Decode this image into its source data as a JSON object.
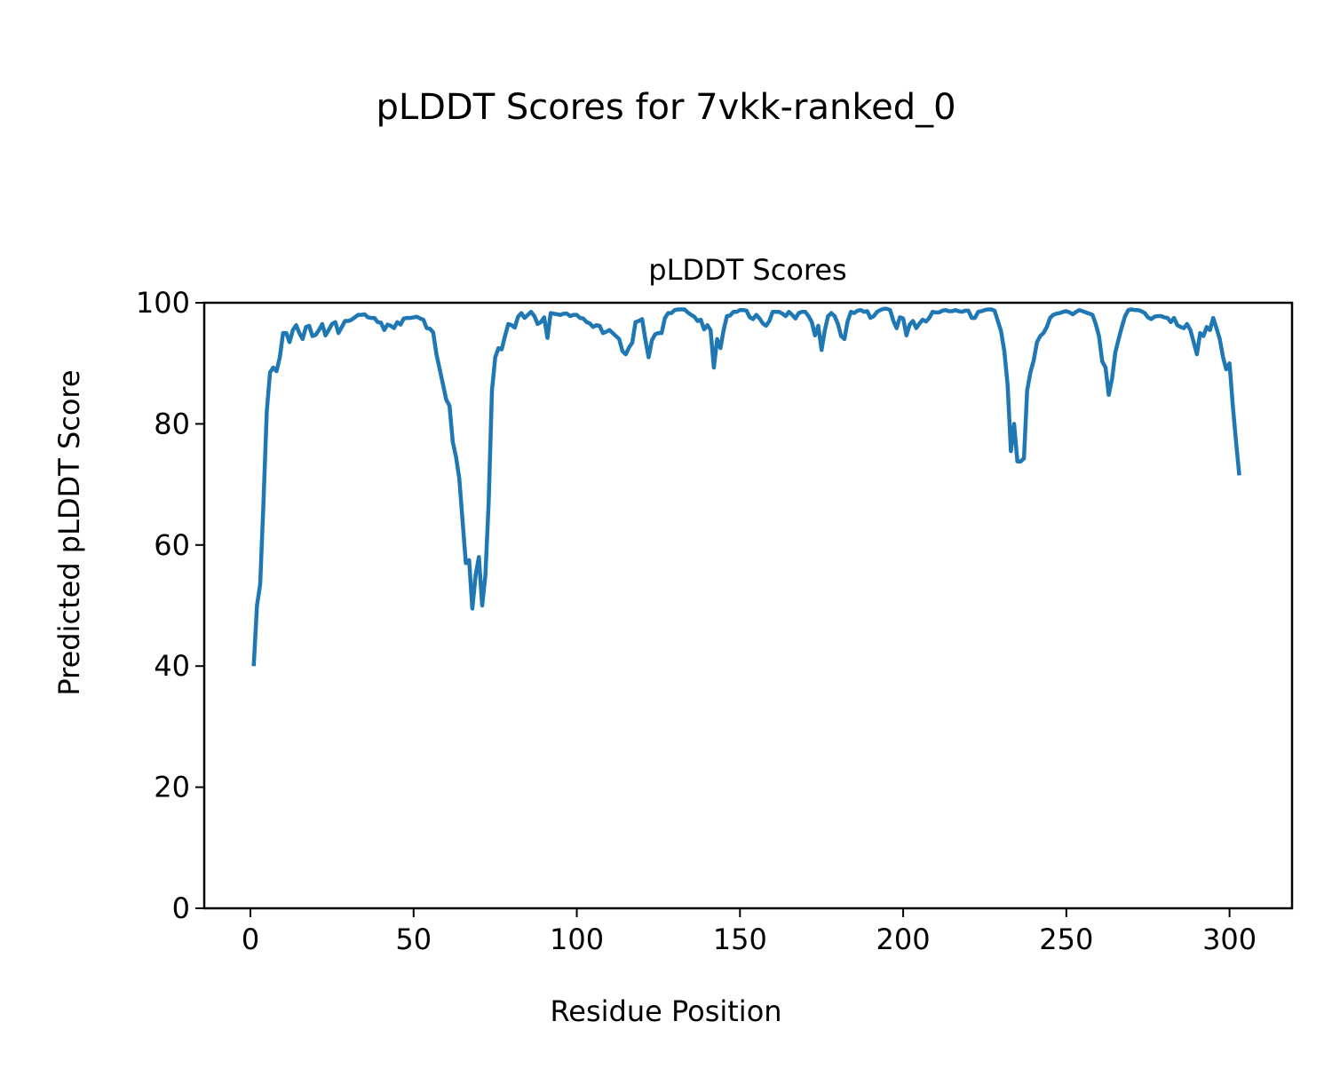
{
  "chart_data": {
    "type": "line",
    "suptitle": "pLDDT Scores for 7vkk-ranked_0",
    "title": "pLDDT Scores",
    "xlabel": "Residue Position",
    "ylabel": "Predicted pLDDT Score",
    "xlim": [
      -14.15,
      319.15
    ],
    "ylim": [
      0,
      100
    ],
    "xticks": [
      0,
      50,
      100,
      150,
      200,
      250,
      300
    ],
    "yticks": [
      0,
      20,
      40,
      60,
      80,
      100
    ],
    "grid": false,
    "line_color": "#1f77b4",
    "x_start": 1,
    "series": [
      {
        "name": "pLDDT",
        "values": [
          40,
          50,
          53.5,
          67,
          82,
          88.5,
          89.3,
          88.7,
          91,
          95,
          95,
          93.5,
          95.5,
          96.3,
          95,
          94,
          96,
          96.2,
          94.5,
          94.7,
          95.5,
          96.5,
          94.6,
          95.5,
          96.5,
          96.8,
          95,
          96,
          97,
          97,
          97.2,
          97.6,
          98,
          98,
          98.1,
          97.6,
          97.5,
          97.5,
          96.8,
          96.7,
          95.5,
          96.4,
          96.2,
          95.8,
          96.8,
          96.4,
          97.4,
          97.5,
          97.5,
          97.6,
          97.7,
          97.4,
          97.2,
          95.8,
          95.7,
          95.1,
          91.5,
          89,
          86.5,
          84,
          83,
          77,
          74.5,
          71,
          64,
          57,
          57.5,
          49.5,
          55,
          58,
          50,
          55,
          67,
          85.5,
          91,
          92.5,
          92.3,
          94.5,
          96.5,
          96.3,
          95.9,
          97.7,
          98.3,
          97.5,
          98,
          98.5,
          97.8,
          96.5,
          96.8,
          97.6,
          94.2,
          98.3,
          98.2,
          98.1,
          98,
          98.2,
          98.2,
          97.8,
          98,
          98,
          97.5,
          97.4,
          96.8,
          96.6,
          96,
          96.3,
          96.2,
          95,
          95.2,
          95.5,
          95,
          94.5,
          94,
          92,
          91.5,
          92.6,
          93.4,
          96.8,
          97,
          97.3,
          94,
          91,
          93.8,
          94.8,
          95,
          95,
          97.5,
          98.3,
          98.3,
          98.8,
          98.9,
          98.9,
          98.9,
          98.4,
          98,
          97.7,
          97,
          97.2,
          95.6,
          96.3,
          95.5,
          89.3,
          94,
          92.5,
          95.5,
          97.8,
          97.9,
          98.5,
          98.5,
          98.8,
          98.8,
          98.7,
          97.6,
          97.3,
          98,
          97.4,
          96.6,
          96.2,
          97,
          98.5,
          98.5,
          98.5,
          98.2,
          97.8,
          98.5,
          98,
          97.4,
          98.3,
          98.5,
          98.5,
          97.8,
          96.8,
          94.6,
          96.2,
          92.2,
          95.5,
          97.8,
          98.3,
          97.8,
          96.5,
          94.5,
          94,
          97,
          98.5,
          98.3,
          98.7,
          98.8,
          98.5,
          98.6,
          97.5,
          97.8,
          98.5,
          98.8,
          99,
          99,
          98.8,
          97,
          95.8,
          97.6,
          97.4,
          94.6,
          96.4,
          97,
          95.8,
          96.6,
          97.2,
          96.9,
          97.5,
          98.5,
          98.4,
          98.4,
          98.7,
          98.8,
          98.6,
          98.6,
          98.8,
          98.6,
          98.5,
          98.7,
          98.7,
          97.5,
          97.5,
          98.5,
          98.6,
          98.8,
          98.9,
          98.9,
          98.7,
          97,
          95.3,
          92,
          86.5,
          75.5,
          80,
          73.8,
          73.8,
          74.3,
          85.5,
          88.5,
          90.5,
          93.5,
          94.5,
          95,
          96,
          97.5,
          98,
          98.2,
          98.3,
          98.5,
          98.6,
          98.4,
          98.1,
          98.5,
          98.8,
          98.6,
          98.4,
          98.2,
          98,
          96.5,
          94.5,
          90.3,
          89.3,
          84.8,
          87.5,
          91.8,
          94,
          96,
          97.8,
          98.8,
          98.9,
          98.8,
          98.8,
          98.6,
          98.3,
          97.6,
          97.3,
          97.7,
          97.8,
          97.8,
          97.6,
          97.5,
          96.8,
          97.5,
          96.3,
          96,
          95.8,
          96.5,
          95.5,
          93.5,
          91.5,
          95,
          94.5,
          96,
          95.5,
          97.5,
          95.8,
          94,
          91,
          89,
          90,
          83,
          77,
          71.5
        ]
      }
    ]
  }
}
